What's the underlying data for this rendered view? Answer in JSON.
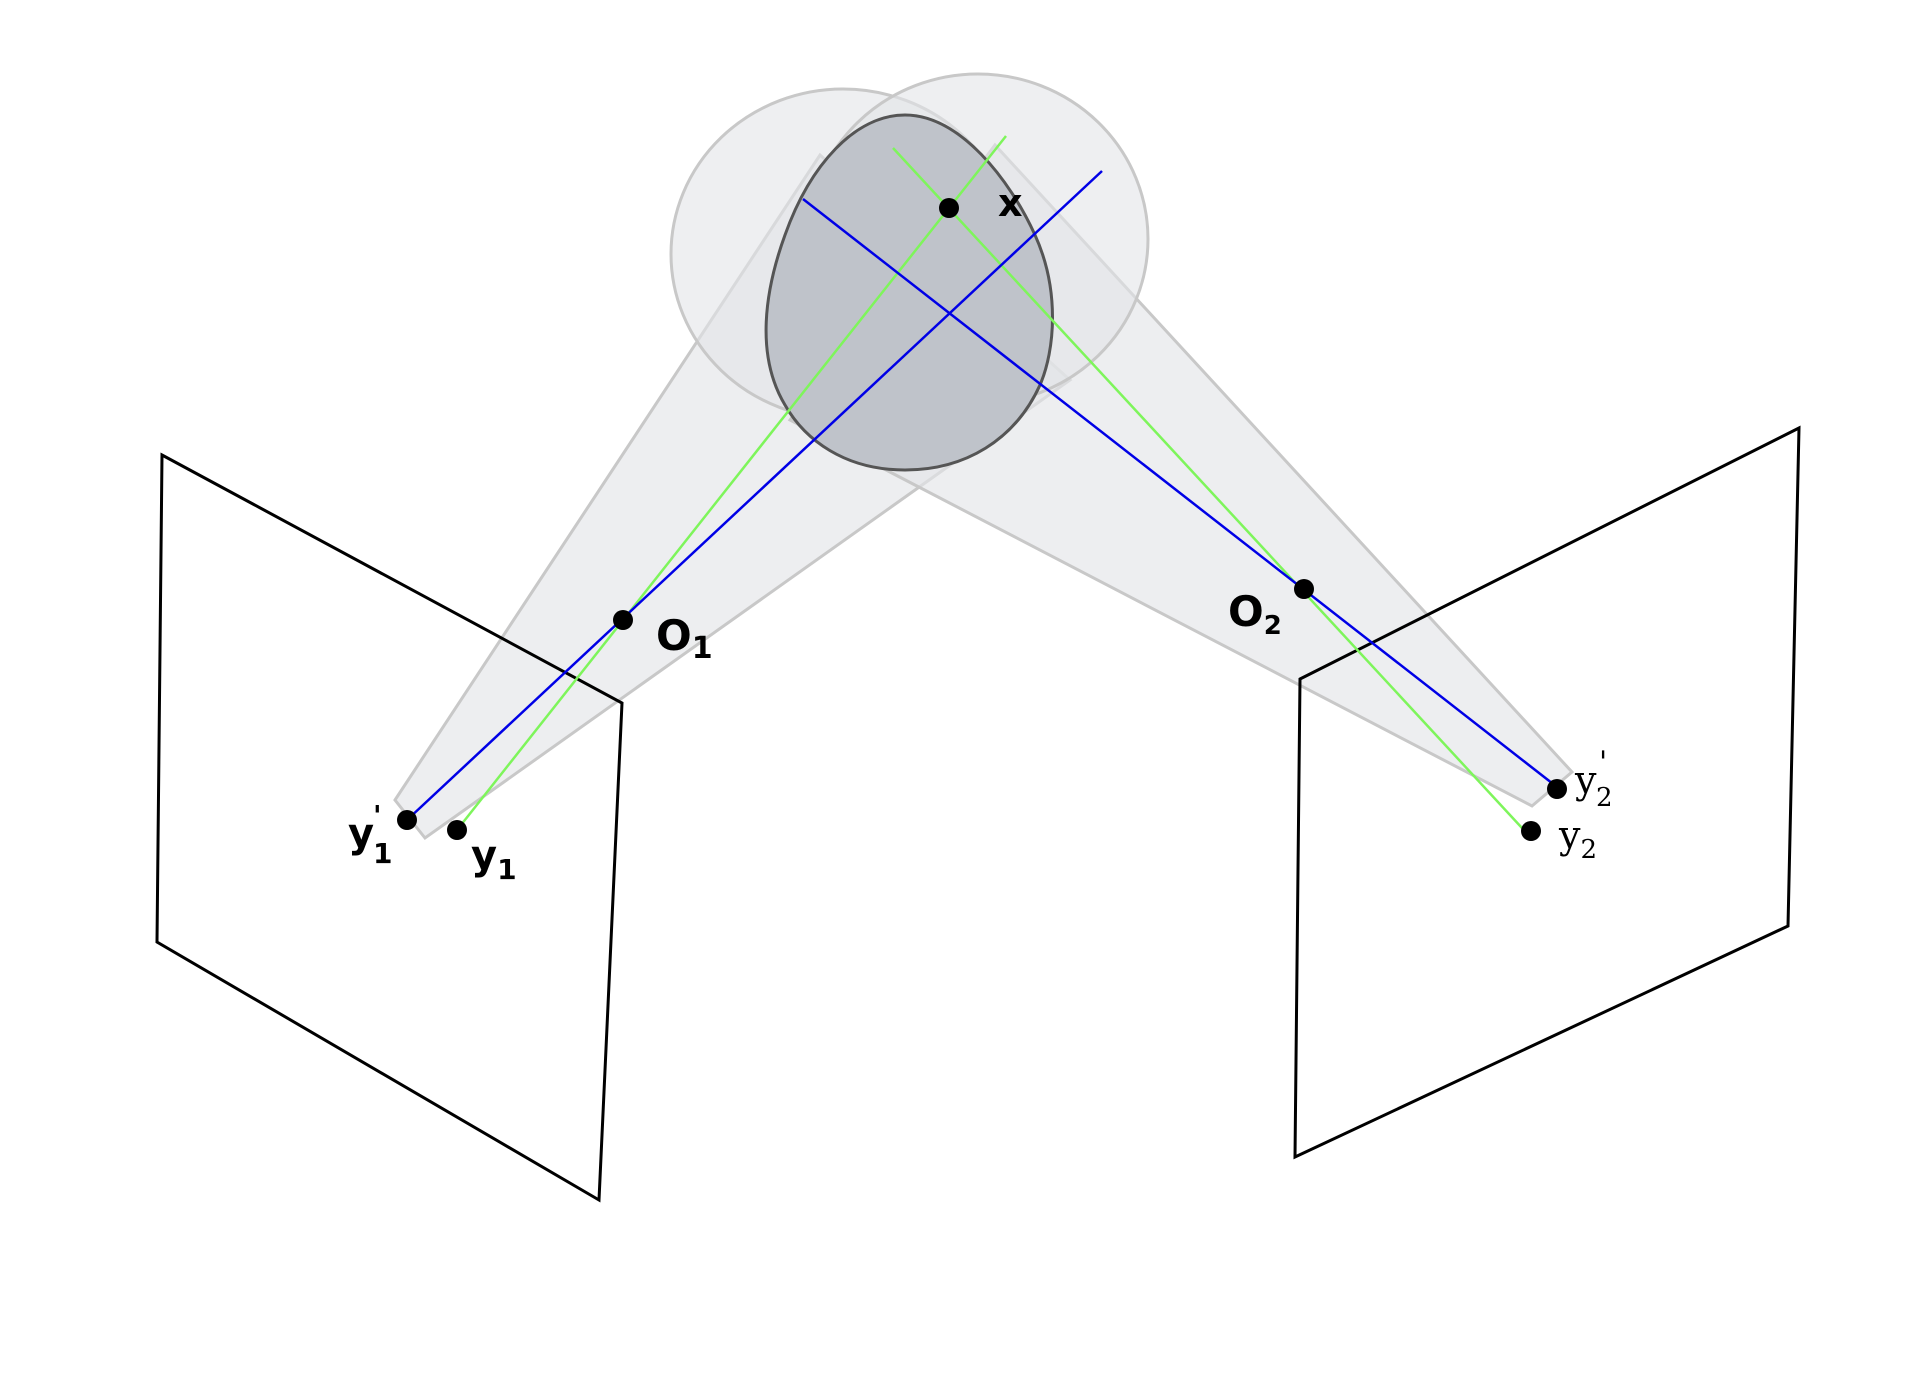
{
  "labels": {
    "x": "x",
    "o1": {
      "base": "O",
      "sub": "1"
    },
    "o2": {
      "base": "O",
      "sub": "2"
    },
    "y1": {
      "base": "y",
      "sub": "1"
    },
    "y1p": {
      "base": "y",
      "sup": "'",
      "sub": "1"
    },
    "y2": {
      "base": "y",
      "sub": "2"
    },
    "y2p": {
      "base": "y",
      "sup": "'",
      "sub": "2"
    }
  },
  "colors": {
    "image_plane_stroke": "#000000",
    "ray_true": "#7ef55b",
    "ray_perturbed": "#0000e6",
    "uncertainty_fill": "#e3e5e8",
    "uncertainty_stroke": "#c8c8c8",
    "object_fill": "#bfc3ca",
    "object_stroke": "#555555",
    "point": "#000000"
  }
}
